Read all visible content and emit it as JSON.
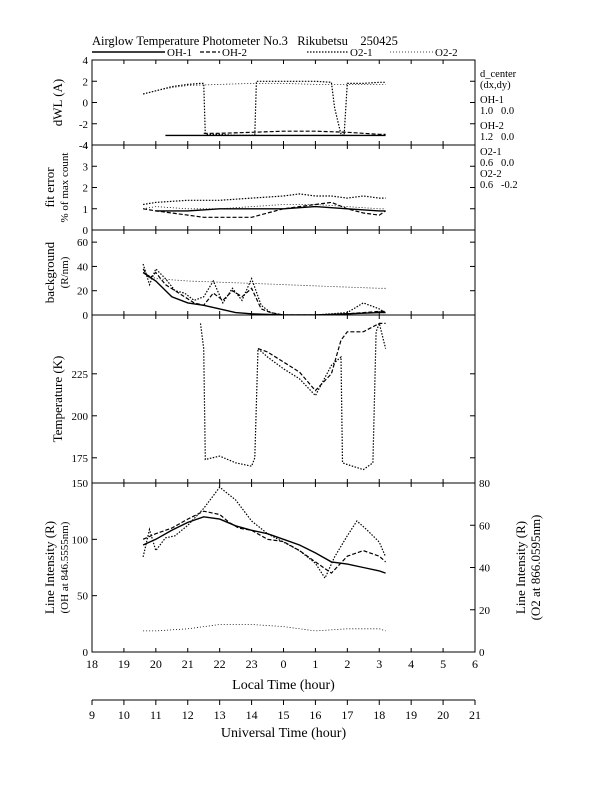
{
  "chart_data": {
    "type": "line",
    "title": "Airglow Temperature Photometer No.3   Rikubetsu    250425",
    "legend": [
      {
        "name": "OH-1",
        "style": "solid"
      },
      {
        "name": "OH-2",
        "style": "dashed"
      },
      {
        "name": "O2-1",
        "style": "dotted"
      },
      {
        "name": "O2-2",
        "style": "fine-dotted"
      }
    ],
    "side_info": {
      "header1": "d_center",
      "header2": "(dx,dy)",
      "rows": [
        {
          "name": "OH-1",
          "value": "1.0   0.0"
        },
        {
          "name": "OH-2",
          "value": "1.2   0.0"
        },
        {
          "name": "O2-1",
          "value": "0.6   0.0"
        },
        {
          "name": "O2-2",
          "value": "0.6   -0.2"
        }
      ]
    },
    "x_axis": {
      "label": "Local Time (hour)",
      "range": [
        18,
        30
      ],
      "ticks": [
        18,
        19,
        20,
        21,
        22,
        23,
        24,
        25,
        26,
        27,
        28,
        29,
        30
      ],
      "tick_labels": [
        "18",
        "19",
        "20",
        "21",
        "22",
        "23",
        "0",
        "1",
        "2",
        "3",
        "4",
        "5",
        "6"
      ]
    },
    "x_axis_ut": {
      "label": "Universal Time (hour)",
      "ticks": [
        9,
        10,
        11,
        12,
        13,
        14,
        15,
        16,
        17,
        18,
        19,
        20,
        21
      ],
      "tick_labels": [
        "9",
        "10",
        "11",
        "12",
        "13",
        "14",
        "15",
        "16",
        "17",
        "18",
        "19",
        "20",
        "21"
      ]
    },
    "panels": [
      {
        "id": "dwl",
        "ylabel": [
          "dWL (A)"
        ],
        "ylim": [
          -4,
          4
        ],
        "ticks": [
          -4,
          -2,
          0,
          2,
          4
        ],
        "tick_labels": [
          "-4",
          "-2",
          "0",
          "2",
          "4"
        ],
        "series": [
          {
            "name": "OH-1",
            "style": "solid",
            "x": [
              20.3,
              21,
              22,
              23,
              24,
              25,
              26,
              27,
              27.2
            ],
            "y": [
              -3.1,
              -3.1,
              -3.1,
              -3.1,
              -3.1,
              -3.1,
              -3.1,
              -3.1,
              -3.1
            ]
          },
          {
            "name": "OH-2",
            "style": "dashed",
            "x": [
              21.5,
              22,
              23,
              24,
              25,
              26,
              26.5,
              27,
              27.2
            ],
            "y": [
              -2.9,
              -2.9,
              -2.8,
              -2.7,
              -2.7,
              -2.8,
              -2.9,
              -3.0,
              -3.0
            ]
          },
          {
            "name": "O2-1",
            "style": "dotted",
            "x": [
              19.6,
              20,
              20.5,
              21,
              21.4,
              21.5,
              21.55,
              22,
              22.5,
              23,
              23.1,
              23.15,
              24,
              25,
              25.5,
              25.6,
              25.8,
              25.9,
              26,
              26.5,
              27,
              27.2
            ],
            "y": [
              0.8,
              1.1,
              1.5,
              1.7,
              1.8,
              1.8,
              -3.0,
              -3.0,
              -3.1,
              -3.1,
              -3.0,
              2.0,
              2.0,
              2.0,
              1.9,
              -0.5,
              -3.0,
              -3.1,
              1.8,
              1.8,
              1.9,
              1.9
            ]
          },
          {
            "name": "O2-2",
            "style": "fine-dotted",
            "x": [
              19.6,
              20,
              20.5,
              21,
              22,
              23,
              24,
              25,
              26,
              27,
              27.2
            ],
            "y": [
              0.8,
              1.1,
              1.4,
              1.6,
              1.7,
              1.8,
              1.8,
              1.7,
              1.7,
              1.7,
              1.7
            ]
          }
        ]
      },
      {
        "id": "fit",
        "ylabel": [
          "fit error",
          "% of max count"
        ],
        "ylim": [
          0,
          4
        ],
        "ticks": [
          0,
          1,
          2,
          3,
          4
        ],
        "tick_labels": [
          "0",
          "1",
          "2",
          "3",
          "4"
        ],
        "series": [
          {
            "name": "OH-1",
            "style": "solid",
            "x": [
              20,
              21,
              22,
              23,
              24,
              25,
              26,
              27,
              27.2
            ],
            "y": [
              0.9,
              0.9,
              1.0,
              1.0,
              1.0,
              1.1,
              1.0,
              0.9,
              0.9
            ]
          },
          {
            "name": "OH-2",
            "style": "dashed",
            "x": [
              19.6,
              20,
              20.5,
              21,
              21.5,
              22,
              22.5,
              23,
              23.5,
              24,
              24.5,
              25,
              25.5,
              26,
              26.5,
              27,
              27.2
            ],
            "y": [
              1.0,
              0.9,
              0.8,
              0.7,
              0.6,
              0.6,
              0.6,
              0.6,
              0.8,
              1.0,
              1.1,
              1.2,
              1.3,
              1.0,
              0.8,
              0.7,
              0.9
            ]
          },
          {
            "name": "O2-1",
            "style": "dotted",
            "x": [
              19.6,
              20,
              21,
              22,
              23,
              24,
              24.5,
              25,
              25.5,
              26,
              26.5,
              27,
              27.2
            ],
            "y": [
              1.2,
              1.3,
              1.4,
              1.4,
              1.5,
              1.6,
              1.7,
              1.6,
              1.6,
              1.5,
              1.6,
              1.5,
              1.5
            ]
          },
          {
            "name": "O2-2",
            "style": "fine-dotted",
            "x": [
              19.6,
              20,
              21,
              22,
              23,
              24,
              25,
              26,
              27,
              27.2
            ],
            "y": [
              1.0,
              1.1,
              1.0,
              1.0,
              1.1,
              1.2,
              1.2,
              1.1,
              1.0,
              1.0
            ]
          }
        ]
      },
      {
        "id": "bg",
        "ylabel": [
          "background",
          "(R/nm)"
        ],
        "ylim": [
          0,
          70
        ],
        "ticks": [
          0,
          20,
          40,
          60
        ],
        "tick_labels": [
          "0",
          "20",
          "40",
          "60"
        ],
        "series": [
          {
            "name": "OH-1",
            "style": "solid",
            "x": [
              19.6,
              20,
              20.5,
              21,
              21.5,
              22,
              22.5,
              23,
              24,
              25,
              26,
              27,
              27.2
            ],
            "y": [
              35,
              28,
              15,
              10,
              8,
              5,
              2,
              1,
              0,
              0,
              1,
              2,
              2
            ]
          },
          {
            "name": "OH-2",
            "style": "dashed",
            "x": [
              19.6,
              19.8,
              20,
              20.3,
              20.6,
              20.9,
              21.2,
              21.5,
              21.8,
              22.1,
              22.4,
              22.7,
              23,
              23.3,
              23.6,
              24,
              25,
              26,
              27,
              27.2
            ],
            "y": [
              38,
              30,
              35,
              25,
              20,
              15,
              10,
              8,
              18,
              12,
              20,
              15,
              22,
              5,
              2,
              0,
              0,
              1,
              3,
              3
            ]
          },
          {
            "name": "O2-1",
            "style": "dotted",
            "x": [
              19.6,
              19.8,
              20,
              20.3,
              20.6,
              20.9,
              21.2,
              21.5,
              21.8,
              22.1,
              22.4,
              22.7,
              23,
              23.3,
              23.6,
              24,
              25,
              26,
              26.5,
              27,
              27.2
            ],
            "y": [
              42,
              25,
              38,
              30,
              20,
              18,
              12,
              15,
              28,
              10,
              22,
              12,
              30,
              8,
              2,
              0,
              0,
              2,
              10,
              5,
              2
            ]
          },
          {
            "name": "O2-2",
            "style": "fine-dotted",
            "x": [
              19.6,
              20,
              21,
              22,
              23,
              24,
              25,
              26,
              27,
              27.2
            ],
            "y": [
              35,
              30,
              28,
              27,
              26,
              25,
              24,
              23,
              22,
              22
            ]
          }
        ]
      },
      {
        "id": "temp",
        "ylabel": [
          "Temperature (K)"
        ],
        "ylim": [
          160,
          260
        ],
        "ticks": [
          175,
          200,
          225
        ],
        "tick_labels": [
          "175",
          "200",
          "225"
        ],
        "series": [
          {
            "name": "OH-1",
            "style": "solid",
            "x": [],
            "y": []
          },
          {
            "name": "OH-2",
            "style": "dashed",
            "x": [
              23.2,
              23.5,
              24,
              24.5,
              25,
              25.5,
              25.8,
              26,
              26.5,
              27,
              27.2
            ],
            "y": [
              240,
              238,
              232,
              226,
              215,
              225,
              245,
              250,
              250,
              255,
              255
            ]
          },
          {
            "name": "O2-1",
            "style": "dotted",
            "x": [
              21.4,
              21.5,
              21.55,
              22,
              22.5,
              23,
              23.1,
              23.2,
              23.5,
              24,
              24.5,
              25,
              25.5,
              25.8,
              25.85,
              26,
              26.5,
              26.8,
              26.9,
              27,
              27.2
            ],
            "y": [
              255,
              240,
              174,
              176,
              172,
              170,
              175,
              240,
              235,
              228,
              222,
              212,
              230,
              235,
              172,
              171,
              168,
              172,
              250,
              255,
              240
            ]
          },
          {
            "name": "O2-2",
            "style": "fine-dotted",
            "x": [],
            "y": []
          }
        ]
      },
      {
        "id": "int",
        "ylabel": [
          "Line Intensity (R)",
          "(OH at 846.5555nm)"
        ],
        "ylim": [
          0,
          150
        ],
        "ticks": [
          0,
          50,
          100,
          150
        ],
        "tick_labels": [
          "0",
          "50",
          "100",
          "150"
        ],
        "y2label": [
          "Line Intensity (R)",
          "(O2 at 866.0595nm)"
        ],
        "y2lim": [
          0,
          80
        ],
        "y2ticks": [
          0,
          20,
          40,
          60,
          80
        ],
        "y2tick_labels": [
          "0",
          "20",
          "40",
          "60",
          "80"
        ],
        "series": [
          {
            "name": "OH-1",
            "style": "solid",
            "x": [
              19.6,
              20,
              20.5,
              21,
              21.5,
              22,
              22.5,
              23,
              23.5,
              24,
              24.5,
              25,
              25.5,
              26,
              26.5,
              27,
              27.2
            ],
            "y": [
              95,
              100,
              108,
              115,
              120,
              118,
              112,
              108,
              105,
              100,
              95,
              88,
              80,
              78,
              75,
              72,
              70
            ]
          },
          {
            "name": "OH-2",
            "style": "dashed",
            "x": [
              19.6,
              20,
              20.5,
              21,
              21.5,
              22,
              22.3,
              22.6,
              23,
              23.5,
              24,
              24.5,
              25,
              25.5,
              26,
              26.5,
              27,
              27.2
            ],
            "y": [
              100,
              105,
              110,
              118,
              125,
              122,
              115,
              110,
              108,
              100,
              98,
              90,
              80,
              70,
              85,
              90,
              85,
              80
            ]
          },
          {
            "name": "O2-1",
            "style": "dotted",
            "axis": "y2",
            "x": [
              19.6,
              19.8,
              20,
              20.3,
              20.6,
              21,
              21.5,
              22,
              22.5,
              23,
              23.5,
              24,
              24.5,
              25,
              25.3,
              25.6,
              26,
              26.3,
              26.6,
              27,
              27.2
            ],
            "y": [
              45,
              58,
              48,
              54,
              55,
              60,
              68,
              78,
              72,
              62,
              56,
              52,
              48,
              42,
              35,
              45,
              55,
              62,
              58,
              52,
              45
            ]
          },
          {
            "name": "O2-2",
            "style": "fine-dotted",
            "axis": "y2",
            "x": [
              19.6,
              20,
              21,
              22,
              23,
              24,
              25,
              26,
              27,
              27.2
            ],
            "y": [
              10,
              10,
              11,
              13,
              13,
              12,
              10,
              11,
              11,
              10
            ]
          }
        ]
      }
    ]
  }
}
